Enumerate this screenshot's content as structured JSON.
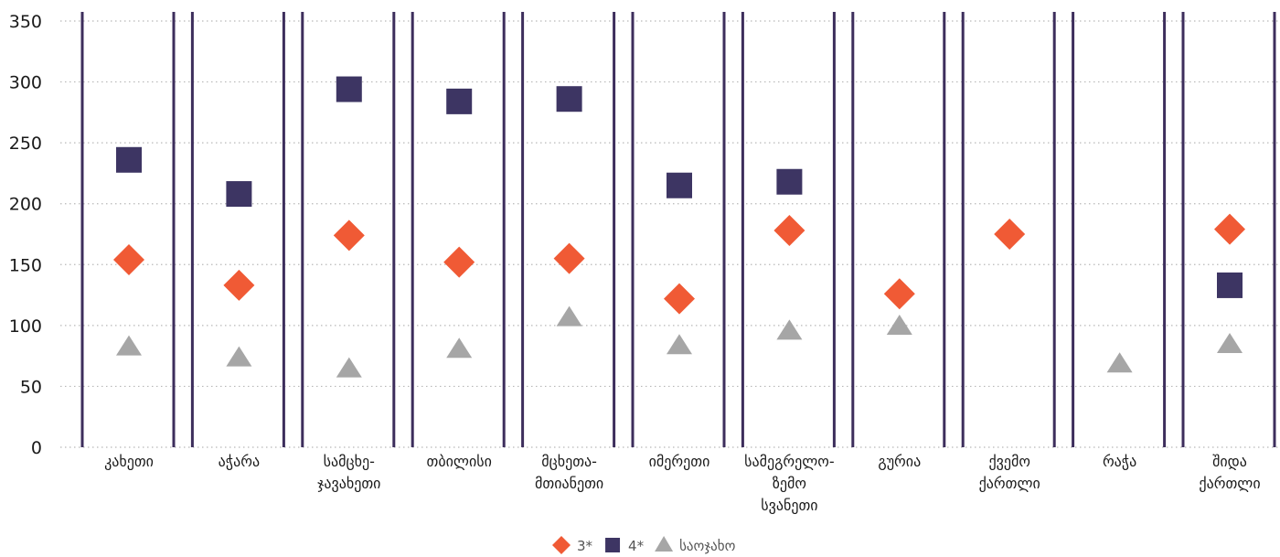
{
  "chart_data": {
    "type": "scatter",
    "categories": [
      [
        "კახეთი"
      ],
      [
        "აჭარა"
      ],
      [
        "სამცხე-",
        "ჯავახეთი"
      ],
      [
        "თბილისი"
      ],
      [
        "მცხეთა-",
        "მთიანეთი"
      ],
      [
        "იმერეთი"
      ],
      [
        "სამეგრელო-",
        "ზემო",
        "სვანეთი"
      ],
      [
        "გურია"
      ],
      [
        "ქვემო",
        "ქართლი"
      ],
      [
        "რაჭა"
      ],
      [
        "შიდა",
        "ქართლი"
      ]
    ],
    "series": [
      {
        "name": "3*",
        "marker": "diamond",
        "color": "#f05a35",
        "values": [
          154,
          133,
          174,
          152,
          155,
          122,
          178,
          126,
          175,
          null,
          179
        ]
      },
      {
        "name": "4*",
        "marker": "square",
        "color": "#3d3563",
        "values": [
          236,
          208,
          294,
          284,
          286,
          215,
          218,
          null,
          null,
          null,
          133
        ]
      },
      {
        "name": "საოჯახო",
        "marker": "triangle",
        "color": "#a6a6a6",
        "values": [
          82,
          73,
          64,
          80,
          106,
          83,
          95,
          99,
          null,
          68,
          84
        ]
      }
    ],
    "ylim": [
      0,
      350
    ],
    "yticks": [
      "0",
      "50",
      "100",
      "150",
      "200",
      "250",
      "300",
      "350"
    ],
    "grid": "horizontal-dotted",
    "legend": "bottom-center",
    "separator_color": "#3d2e5c"
  }
}
